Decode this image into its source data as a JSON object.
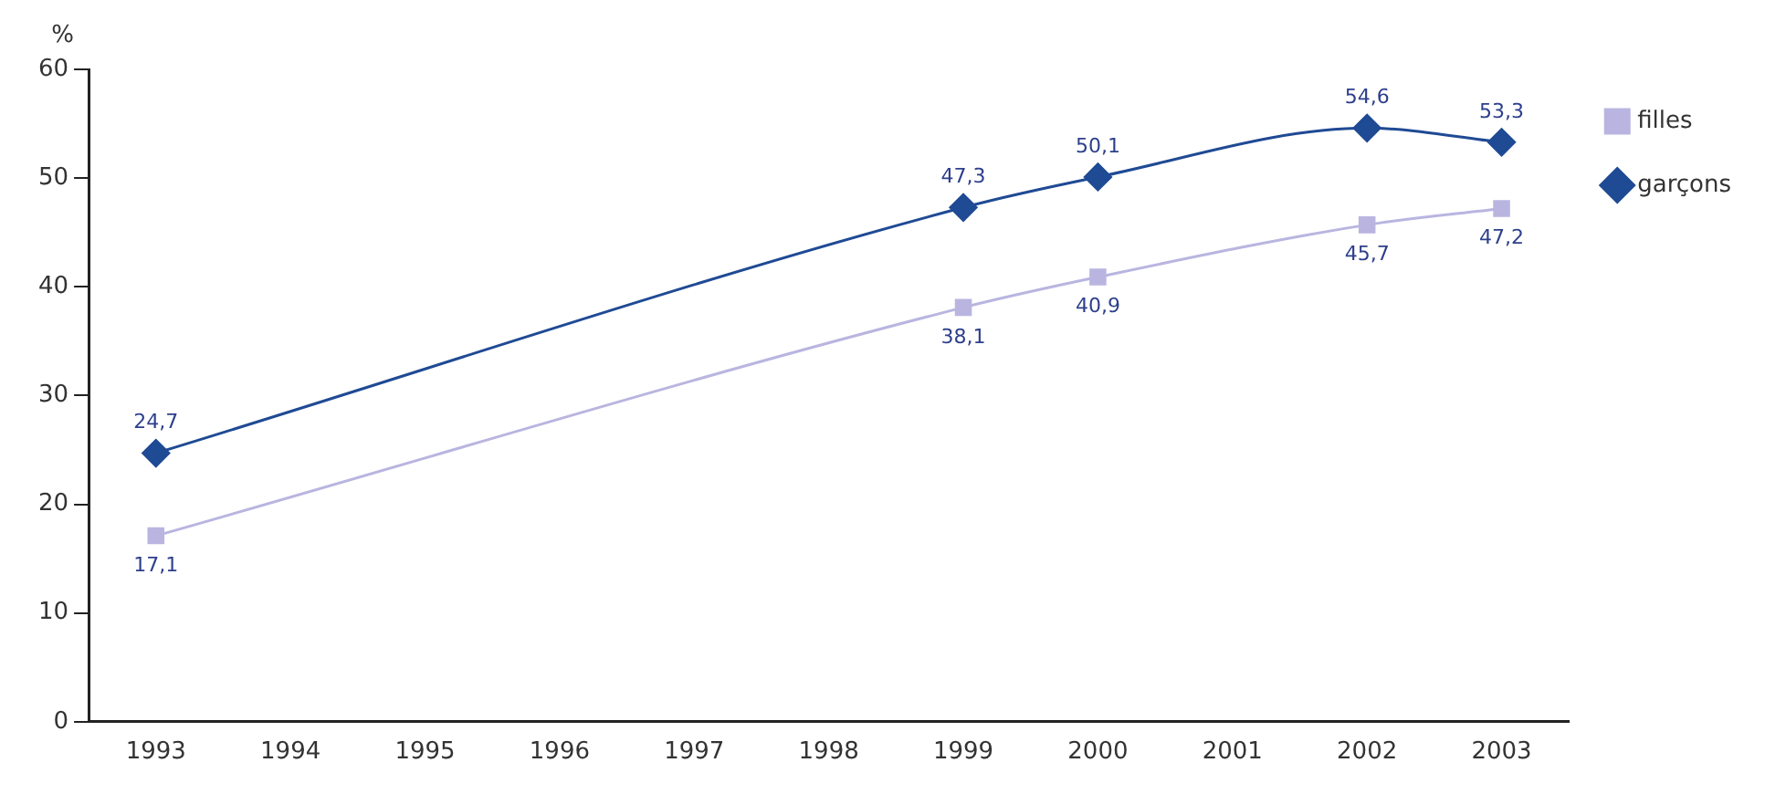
{
  "chart_data": {
    "type": "line",
    "ylabel": "%",
    "x": [
      1993,
      1999,
      2000,
      2002,
      2003
    ],
    "xlim": [
      1992.5,
      2003.5
    ],
    "xticks": [
      1993,
      1994,
      1995,
      1996,
      1997,
      1998,
      1999,
      2000,
      2001,
      2002,
      2003
    ],
    "ylim": [
      0,
      60
    ],
    "yticks": [
      0,
      10,
      20,
      30,
      40,
      50,
      60
    ],
    "grid": false,
    "legend": "top right",
    "series": [
      {
        "name": "filles",
        "color": "#b9b5e0",
        "marker": "square",
        "values": [
          17.1,
          38.1,
          40.9,
          45.7,
          47.2
        ],
        "value_labels": [
          "17,1",
          "38,1",
          "40,9",
          "45,7",
          "47,2"
        ]
      },
      {
        "name": "garçons",
        "color": "#1f4a94",
        "marker": "diamond",
        "values": [
          24.7,
          47.3,
          50.1,
          54.6,
          53.3
        ],
        "value_labels": [
          "24,7",
          "47,3",
          "50,1",
          "54,6",
          "53,3"
        ]
      }
    ]
  }
}
